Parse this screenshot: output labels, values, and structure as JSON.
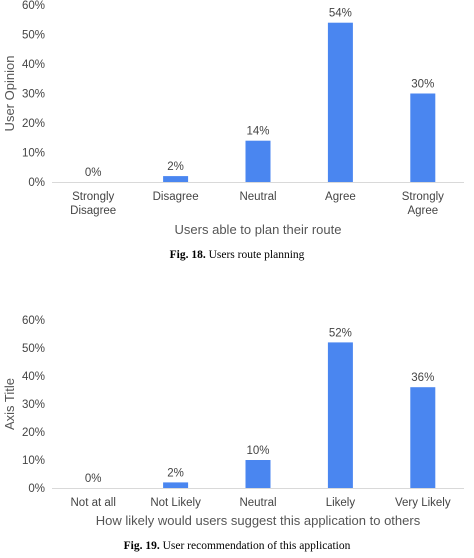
{
  "chart_data": [
    {
      "type": "bar",
      "categories": [
        [
          "Strongly",
          "Disagree"
        ],
        [
          "Disagree"
        ],
        [
          "Neutral"
        ],
        [
          "Agree"
        ],
        [
          "Strongly",
          "Agree"
        ]
      ],
      "values": [
        0,
        2,
        14,
        54,
        30
      ],
      "data_labels": [
        "0%",
        "2%",
        "14%",
        "54%",
        "30%"
      ],
      "ylim": [
        0,
        60
      ],
      "yticks": [
        0,
        10,
        20,
        30,
        40,
        50,
        60
      ],
      "ytick_labels": [
        "0%",
        "10%",
        "20%",
        "30%",
        "40%",
        "50%",
        "60%"
      ],
      "xlabel": "Users able to plan their route",
      "ylabel": "User Opinion",
      "grid": false,
      "bar_color": "#4a86f0",
      "caption_prefix": "Fig. 18.",
      "caption_text": " Users route planning"
    },
    {
      "type": "bar",
      "categories": [
        [
          "Not at all"
        ],
        [
          "Not Likely"
        ],
        [
          "Neutral"
        ],
        [
          "Likely"
        ],
        [
          "Very Likely"
        ]
      ],
      "values": [
        0,
        2,
        10,
        52,
        36
      ],
      "data_labels": [
        "0%",
        "2%",
        "10%",
        "52%",
        "36%"
      ],
      "ylim": [
        0,
        60
      ],
      "yticks": [
        0,
        10,
        20,
        30,
        40,
        50,
        60
      ],
      "ytick_labels": [
        "0%",
        "10%",
        "20%",
        "30%",
        "40%",
        "50%",
        "60%"
      ],
      "xlabel": "How likely would users suggest this application to others",
      "ylabel": "Axis Title",
      "grid": false,
      "bar_color": "#4a86f0",
      "caption_prefix": "Fig. 19.",
      "caption_text": " User recommendation of this application"
    }
  ]
}
